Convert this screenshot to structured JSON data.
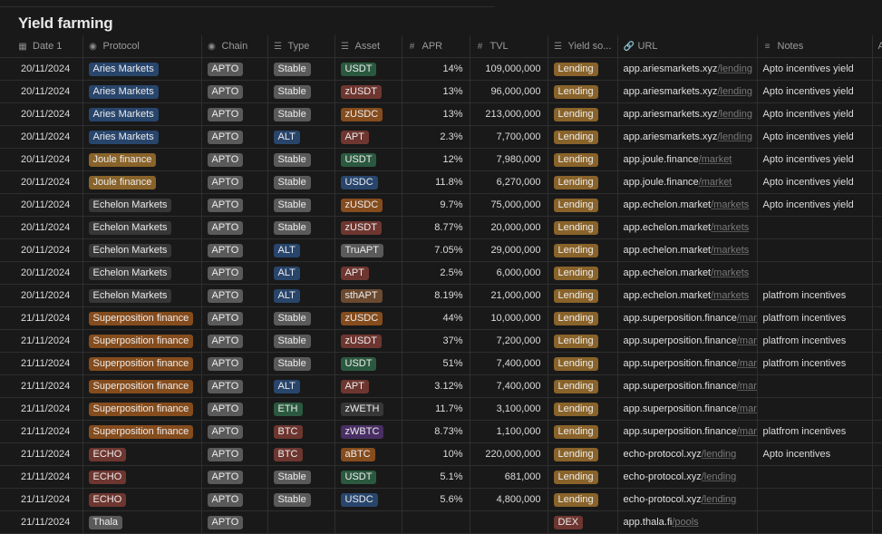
{
  "title": "Yield farming",
  "columns": [
    {
      "icon": "calendar-icon",
      "glyph": "▦",
      "label": "Date 1"
    },
    {
      "icon": "select-icon",
      "glyph": "◉",
      "label": "Protocol"
    },
    {
      "icon": "select-icon",
      "glyph": "◉",
      "label": "Chain"
    },
    {
      "icon": "list-icon",
      "glyph": "☰",
      "label": "Type"
    },
    {
      "icon": "list-icon",
      "glyph": "☰",
      "label": "Asset"
    },
    {
      "icon": "hash-icon",
      "glyph": "#",
      "label": "APR"
    },
    {
      "icon": "hash-icon",
      "glyph": "#",
      "label": "TVL"
    },
    {
      "icon": "list-icon",
      "glyph": "☰",
      "label": "Yield so..."
    },
    {
      "icon": "link-icon",
      "glyph": "🔗",
      "label": "URL"
    },
    {
      "icon": "text-icon",
      "glyph": "≡",
      "label": "Notes"
    },
    {
      "icon": "text-icon",
      "glyph": "",
      "label": "Aa"
    }
  ],
  "colors": {
    "blue": "#28456c",
    "gray": "#5a5a5a",
    "orange": "#854c1d",
    "brown": "#6b4a30",
    "green": "#2b593f",
    "red": "#6e3630",
    "purple": "#492f64",
    "yellow": "#89632a",
    "darkgray": "#373737"
  },
  "rows": [
    {
      "date": "20/11/2024",
      "protocol": {
        "label": "Aries Markets",
        "color": "blue"
      },
      "chain": "APTO",
      "type": {
        "label": "Stable",
        "color": "gray"
      },
      "asset": {
        "label": "USDT",
        "color": "green"
      },
      "apr": "14%",
      "tvl": "109,000,000",
      "yield": "Lending",
      "url_host": "app.ariesmarkets.xyz",
      "url_path": "/lending",
      "notes": "Apto incentives yield"
    },
    {
      "date": "20/11/2024",
      "protocol": {
        "label": "Aries Markets",
        "color": "blue"
      },
      "chain": "APTO",
      "type": {
        "label": "Stable",
        "color": "gray"
      },
      "asset": {
        "label": "zUSDT",
        "color": "red"
      },
      "apr": "13%",
      "tvl": "96,000,000",
      "yield": "Lending",
      "url_host": "app.ariesmarkets.xyz",
      "url_path": "/lending",
      "notes": "Apto incentives yield"
    },
    {
      "date": "20/11/2024",
      "protocol": {
        "label": "Aries Markets",
        "color": "blue"
      },
      "chain": "APTO",
      "type": {
        "label": "Stable",
        "color": "gray"
      },
      "asset": {
        "label": "zUSDC",
        "color": "orange"
      },
      "apr": "13%",
      "tvl": "213,000,000",
      "yield": "Lending",
      "url_host": "app.ariesmarkets.xyz",
      "url_path": "/lending",
      "notes": "Apto incentives yield"
    },
    {
      "date": "20/11/2024",
      "protocol": {
        "label": "Aries Markets",
        "color": "blue"
      },
      "chain": "APTO",
      "type": {
        "label": "ALT",
        "color": "blue"
      },
      "asset": {
        "label": "APT",
        "color": "red"
      },
      "apr": "2.3%",
      "tvl": "7,700,000",
      "yield": "Lending",
      "url_host": "app.ariesmarkets.xyz",
      "url_path": "/lending",
      "notes": "Apto incentives yield"
    },
    {
      "date": "20/11/2024",
      "protocol": {
        "label": "Joule finance",
        "color": "yellow"
      },
      "chain": "APTO",
      "type": {
        "label": "Stable",
        "color": "gray"
      },
      "asset": {
        "label": "USDT",
        "color": "green"
      },
      "apr": "12%",
      "tvl": "7,980,000",
      "yield": "Lending",
      "url_host": "app.joule.finance",
      "url_path": "/market",
      "notes": "Apto incentives yield"
    },
    {
      "date": "20/11/2024",
      "protocol": {
        "label": "Joule finance",
        "color": "yellow"
      },
      "chain": "APTO",
      "type": {
        "label": "Stable",
        "color": "gray"
      },
      "asset": {
        "label": "USDC",
        "color": "blue"
      },
      "apr": "11.8%",
      "tvl": "6,270,000",
      "yield": "Lending",
      "url_host": "app.joule.finance",
      "url_path": "/market",
      "notes": "Apto incentives yield"
    },
    {
      "date": "20/11/2024",
      "protocol": {
        "label": "Echelon Markets",
        "color": "darkgray"
      },
      "chain": "APTO",
      "type": {
        "label": "Stable",
        "color": "gray"
      },
      "asset": {
        "label": "zUSDC",
        "color": "orange"
      },
      "apr": "9.7%",
      "tvl": "75,000,000",
      "yield": "Lending",
      "url_host": "app.echelon.market",
      "url_path": "/markets",
      "notes": "Apto incentives yield"
    },
    {
      "date": "20/11/2024",
      "protocol": {
        "label": "Echelon Markets",
        "color": "darkgray"
      },
      "chain": "APTO",
      "type": {
        "label": "Stable",
        "color": "gray"
      },
      "asset": {
        "label": "zUSDT",
        "color": "red"
      },
      "apr": "8.77%",
      "tvl": "20,000,000",
      "yield": "Lending",
      "url_host": "app.echelon.market",
      "url_path": "/markets",
      "notes": ""
    },
    {
      "date": "20/11/2024",
      "protocol": {
        "label": "Echelon Markets",
        "color": "darkgray"
      },
      "chain": "APTO",
      "type": {
        "label": "ALT",
        "color": "blue"
      },
      "asset": {
        "label": "TruAPT",
        "color": "gray"
      },
      "apr": "7.05%",
      "tvl": "29,000,000",
      "yield": "Lending",
      "url_host": "app.echelon.market",
      "url_path": "/markets",
      "notes": ""
    },
    {
      "date": "20/11/2024",
      "protocol": {
        "label": "Echelon Markets",
        "color": "darkgray"
      },
      "chain": "APTO",
      "type": {
        "label": "ALT",
        "color": "blue"
      },
      "asset": {
        "label": "APT",
        "color": "red"
      },
      "apr": "2.5%",
      "tvl": "6,000,000",
      "yield": "Lending",
      "url_host": "app.echelon.market",
      "url_path": "/markets",
      "notes": ""
    },
    {
      "date": "20/11/2024",
      "protocol": {
        "label": "Echelon Markets",
        "color": "darkgray"
      },
      "chain": "APTO",
      "type": {
        "label": "ALT",
        "color": "blue"
      },
      "asset": {
        "label": "sthAPT",
        "color": "brown"
      },
      "apr": "8.19%",
      "tvl": "21,000,000",
      "yield": "Lending",
      "url_host": "app.echelon.market",
      "url_path": "/markets",
      "notes": "platfrom incentives"
    },
    {
      "date": "21/11/2024",
      "protocol": {
        "label": "Superposition finance",
        "color": "orange"
      },
      "chain": "APTO",
      "type": {
        "label": "Stable",
        "color": "gray"
      },
      "asset": {
        "label": "zUSDC",
        "color": "orange"
      },
      "apr": "44%",
      "tvl": "10,000,000",
      "yield": "Lending",
      "url_host": "app.superposition.finance",
      "url_path": "/markets",
      "notes": "platfrom incentives"
    },
    {
      "date": "21/11/2024",
      "protocol": {
        "label": "Superposition finance",
        "color": "orange"
      },
      "chain": "APTO",
      "type": {
        "label": "Stable",
        "color": "gray"
      },
      "asset": {
        "label": "zUSDT",
        "color": "red"
      },
      "apr": "37%",
      "tvl": "7,200,000",
      "yield": "Lending",
      "url_host": "app.superposition.finance",
      "url_path": "/markets",
      "notes": "platfrom incentives"
    },
    {
      "date": "21/11/2024",
      "protocol": {
        "label": "Superposition finance",
        "color": "orange"
      },
      "chain": "APTO",
      "type": {
        "label": "Stable",
        "color": "gray"
      },
      "asset": {
        "label": "USDT",
        "color": "green"
      },
      "apr": "51%",
      "tvl": "7,400,000",
      "yield": "Lending",
      "url_host": "app.superposition.finance",
      "url_path": "/markets",
      "notes": "platfrom incentives"
    },
    {
      "date": "21/11/2024",
      "protocol": {
        "label": "Superposition finance",
        "color": "orange"
      },
      "chain": "APTO",
      "type": {
        "label": "ALT",
        "color": "blue"
      },
      "asset": {
        "label": "APT",
        "color": "red"
      },
      "apr": "3.12%",
      "tvl": "7,400,000",
      "yield": "Lending",
      "url_host": "app.superposition.finance",
      "url_path": "/markets",
      "notes": ""
    },
    {
      "date": "21/11/2024",
      "protocol": {
        "label": "Superposition finance",
        "color": "orange"
      },
      "chain": "APTO",
      "type": {
        "label": "ETH",
        "color": "green"
      },
      "asset": {
        "label": "zWETH",
        "color": "darkgray"
      },
      "apr": "11.7%",
      "tvl": "3,100,000",
      "yield": "Lending",
      "url_host": "app.superposition.finance",
      "url_path": "/markets",
      "notes": ""
    },
    {
      "date": "21/11/2024",
      "protocol": {
        "label": "Superposition finance",
        "color": "orange"
      },
      "chain": "APTO",
      "type": {
        "label": "BTC",
        "color": "red"
      },
      "asset": {
        "label": "zWBTC",
        "color": "purple"
      },
      "apr": "8.73%",
      "tvl": "1,100,000",
      "yield": "Lending",
      "url_host": "app.superposition.finance",
      "url_path": "/markets",
      "notes": "platfrom incentives"
    },
    {
      "date": "21/11/2024",
      "protocol": {
        "label": "ECHO",
        "color": "red"
      },
      "chain": "APTO",
      "type": {
        "label": "BTC",
        "color": "red"
      },
      "asset": {
        "label": "aBTC",
        "color": "orange"
      },
      "apr": "10%",
      "tvl": "220,000,000",
      "yield": "Lending",
      "url_host": "echo-protocol.xyz",
      "url_path": "/lending",
      "notes": "Apto incentives"
    },
    {
      "date": "21/11/2024",
      "protocol": {
        "label": "ECHO",
        "color": "red"
      },
      "chain": "APTO",
      "type": {
        "label": "Stable",
        "color": "gray"
      },
      "asset": {
        "label": "USDT",
        "color": "green"
      },
      "apr": "5.1%",
      "tvl": "681,000",
      "yield": "Lending",
      "url_host": "echo-protocol.xyz",
      "url_path": "/lending",
      "notes": ""
    },
    {
      "date": "21/11/2024",
      "protocol": {
        "label": "ECHO",
        "color": "red"
      },
      "chain": "APTO",
      "type": {
        "label": "Stable",
        "color": "gray"
      },
      "asset": {
        "label": "USDC",
        "color": "blue"
      },
      "apr": "5.6%",
      "tvl": "4,800,000",
      "yield": "Lending",
      "url_host": "echo-protocol.xyz",
      "url_path": "/lending",
      "notes": ""
    },
    {
      "date": "21/11/2024",
      "protocol": {
        "label": "Thala",
        "color": "gray"
      },
      "chain": "APTO",
      "type": {
        "label": "",
        "color": ""
      },
      "asset": {
        "label": "",
        "color": ""
      },
      "apr": "",
      "tvl": "",
      "yield": "DEX",
      "yield_color": "red",
      "url_host": "app.thala.fi",
      "url_path": "/pools",
      "notes": ""
    }
  ]
}
